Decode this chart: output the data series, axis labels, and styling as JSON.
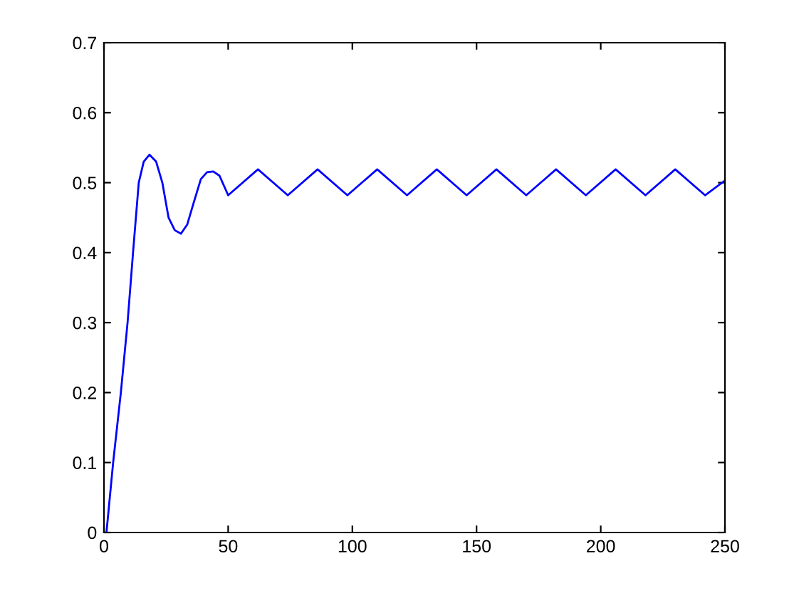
{
  "chart_data": {
    "type": "line",
    "series": [
      {
        "color": "#0000ff",
        "x": [
          1,
          3.7,
          6.8,
          9.5,
          11.7,
          14,
          16,
          18.3,
          21,
          23.5,
          26,
          28.5,
          31,
          33.5,
          36,
          39,
          41.5,
          44,
          46.5,
          50,
          62,
          74,
          86,
          98,
          110,
          122,
          134,
          146,
          158,
          170,
          182,
          194,
          206,
          218,
          230,
          242,
          250
        ],
        "values": [
          0,
          0.1,
          0.2,
          0.3,
          0.4,
          0.5,
          0.53,
          0.54,
          0.53,
          0.5,
          0.45,
          0.432,
          0.427,
          0.44,
          0.47,
          0.505,
          0.515,
          0.516,
          0.51,
          0.482,
          0.519,
          0.482,
          0.519,
          0.482,
          0.519,
          0.482,
          0.519,
          0.482,
          0.519,
          0.482,
          0.519,
          0.482,
          0.519,
          0.482,
          0.519,
          0.482,
          0.503
        ]
      }
    ],
    "xlim": [
      0,
      250
    ],
    "xticks": [
      0,
      50,
      100,
      150,
      200,
      250
    ],
    "ylim": [
      0,
      0.7
    ],
    "yticks": [
      0,
      0.1,
      0.2,
      0.3,
      0.4,
      0.5,
      0.6,
      0.7
    ]
  }
}
